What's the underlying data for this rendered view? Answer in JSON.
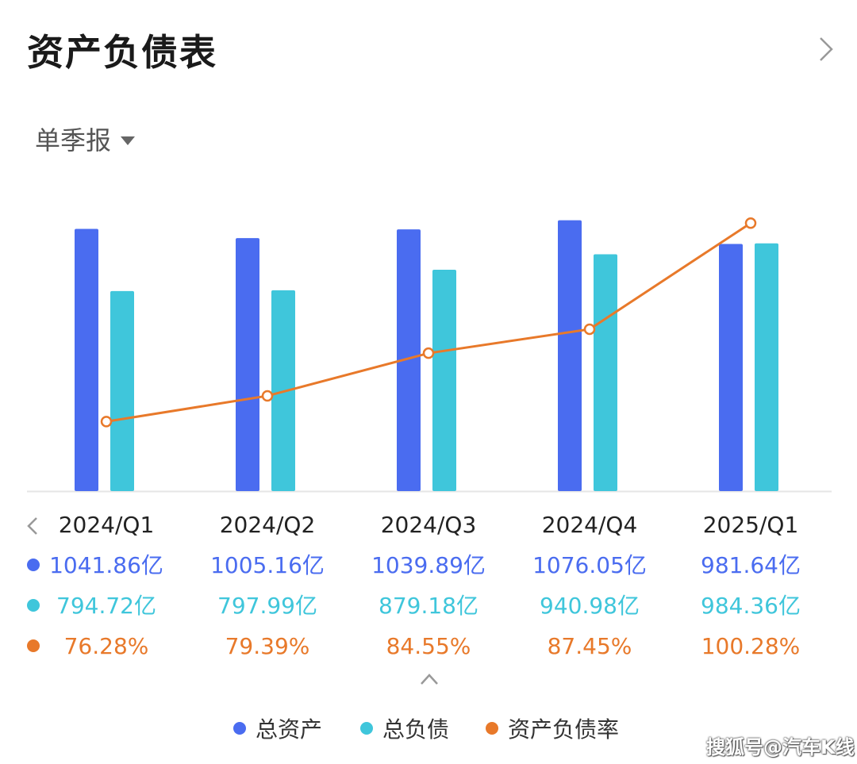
{
  "header": {
    "title": "资产负债表"
  },
  "period_selector": {
    "label": "单季报"
  },
  "chart_data": {
    "type": "bar",
    "categories": [
      "2024/Q1",
      "2024/Q2",
      "2024/Q3",
      "2024/Q4",
      "2025/Q1"
    ],
    "series": [
      {
        "name": "总资产",
        "type": "bar",
        "values": [
          1041.86,
          1005.16,
          1039.89,
          1076.05,
          981.64
        ],
        "labels": [
          "1041.86亿",
          "1005.16亿",
          "1039.89亿",
          "1076.05亿",
          "981.64亿"
        ],
        "color": "#4a6cf0"
      },
      {
        "name": "总负债",
        "type": "bar",
        "values": [
          794.72,
          797.99,
          879.18,
          940.98,
          984.36
        ],
        "labels": [
          "794.72亿",
          "797.99亿",
          "879.18亿",
          "940.98亿",
          "984.36亿"
        ],
        "color": "#3fc6db"
      },
      {
        "name": "资产负债率",
        "type": "line",
        "values": [
          76.28,
          79.39,
          84.55,
          87.45,
          100.28
        ],
        "labels": [
          "76.28%",
          "79.39%",
          "84.55%",
          "87.45%",
          "100.28%"
        ],
        "color": "#e8792a"
      }
    ],
    "ylim_bars": [
      0,
      1100
    ],
    "ylim_line": [
      72,
      100.3
    ],
    "grid": false,
    "legend_position": "bottom"
  },
  "watermark": "搜狐号@汽车K线",
  "colors": {
    "assets": "#4a6cf0",
    "liabilities": "#3fc6db",
    "ratio": "#e8792a",
    "axis": "#e5e5e5"
  },
  "icons": {
    "next": "chevron-right-icon",
    "prev": "chevron-left-icon",
    "collapse": "chevron-up-icon",
    "dropdown": "caret-down-icon"
  }
}
